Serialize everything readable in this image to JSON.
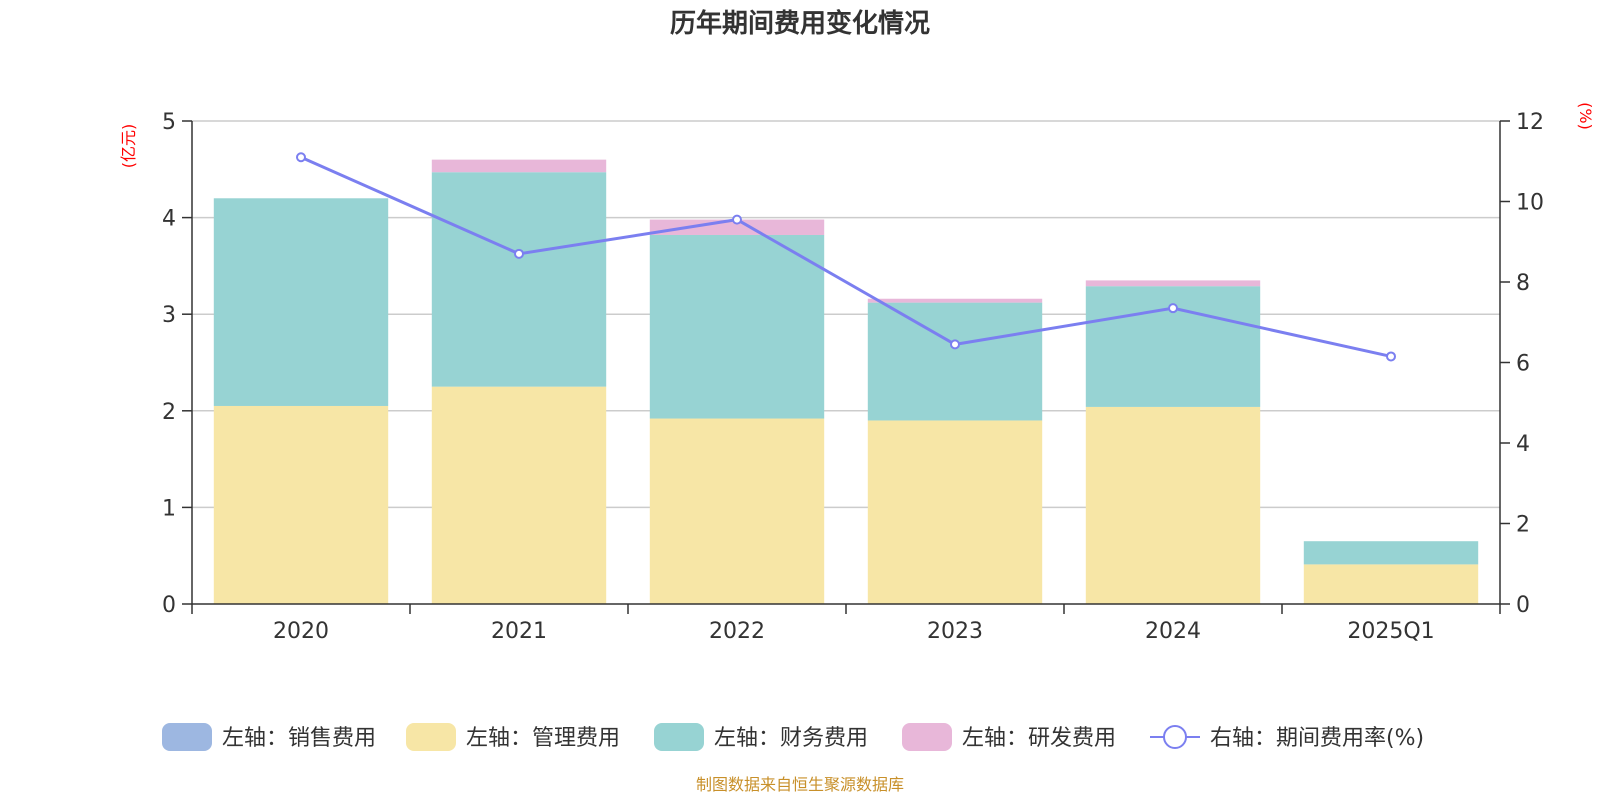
{
  "chart_data": {
    "type": "bar",
    "stacked": true,
    "title": "历年期间费用变化情况",
    "categories": [
      "2020",
      "2021",
      "2022",
      "2023",
      "2024",
      "2025Q1"
    ],
    "left_axis": {
      "unit": "(亿元)",
      "ylim": [
        0,
        5
      ],
      "ticks": [
        "0",
        "1",
        "2",
        "3",
        "4",
        "5"
      ],
      "tick_values": [
        0,
        1,
        2,
        3,
        4,
        5
      ]
    },
    "right_axis": {
      "unit": "(%)",
      "ylim": [
        0,
        12
      ],
      "ticks": [
        "0",
        "2",
        "4",
        "6",
        "8",
        "10",
        "12"
      ],
      "tick_values": [
        0,
        2,
        4,
        6,
        8,
        10,
        12
      ]
    },
    "grid": true,
    "legend_position": "bottom",
    "series": [
      {
        "name": "左轴：销售费用",
        "axis": "left",
        "type": "bar",
        "color": "#9db7e1",
        "values": [
          0,
          0,
          0,
          0,
          0,
          0
        ]
      },
      {
        "name": "左轴：管理费用",
        "axis": "left",
        "type": "bar",
        "color": "#f7e6a6",
        "values": [
          2.05,
          2.25,
          1.92,
          1.9,
          2.04,
          0.41
        ]
      },
      {
        "name": "左轴：财务费用",
        "axis": "left",
        "type": "bar",
        "color": "#97d3d3",
        "values": [
          2.15,
          2.22,
          1.9,
          1.22,
          1.25,
          0.24
        ]
      },
      {
        "name": "左轴：研发费用",
        "axis": "left",
        "type": "bar",
        "color": "#e8b7d9",
        "values": [
          0,
          0.13,
          0.16,
          0.04,
          0.06,
          0
        ]
      },
      {
        "name": "右轴：期间费用率(%)",
        "axis": "right",
        "type": "line",
        "color": "#7b7ff0",
        "values": [
          11.1,
          8.7,
          9.55,
          6.45,
          7.35,
          6.15
        ]
      }
    ],
    "source": "制图数据来自恒生聚源数据库"
  }
}
